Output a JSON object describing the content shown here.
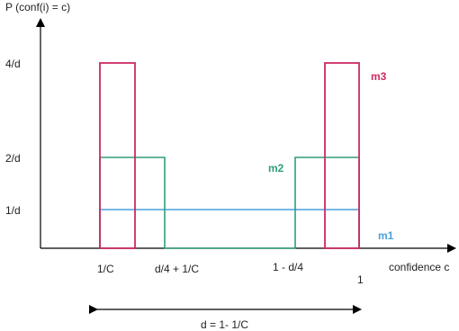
{
  "axes": {
    "y_label": "P (conf(i) = c)",
    "x_label": "confidence c"
  },
  "y_ticks": [
    "4/d",
    "2/d",
    "1/d"
  ],
  "x_ticks": [
    "1/C",
    "d/4 + 1/C",
    "1 - d/4",
    "1"
  ],
  "series": [
    {
      "name": "m1",
      "color": "#4a9edc"
    },
    {
      "name": "m2",
      "color": "#2e9e7a"
    },
    {
      "name": "m3",
      "color": "#cc2a64"
    }
  ],
  "span_label": "d = 1- 1/C"
}
